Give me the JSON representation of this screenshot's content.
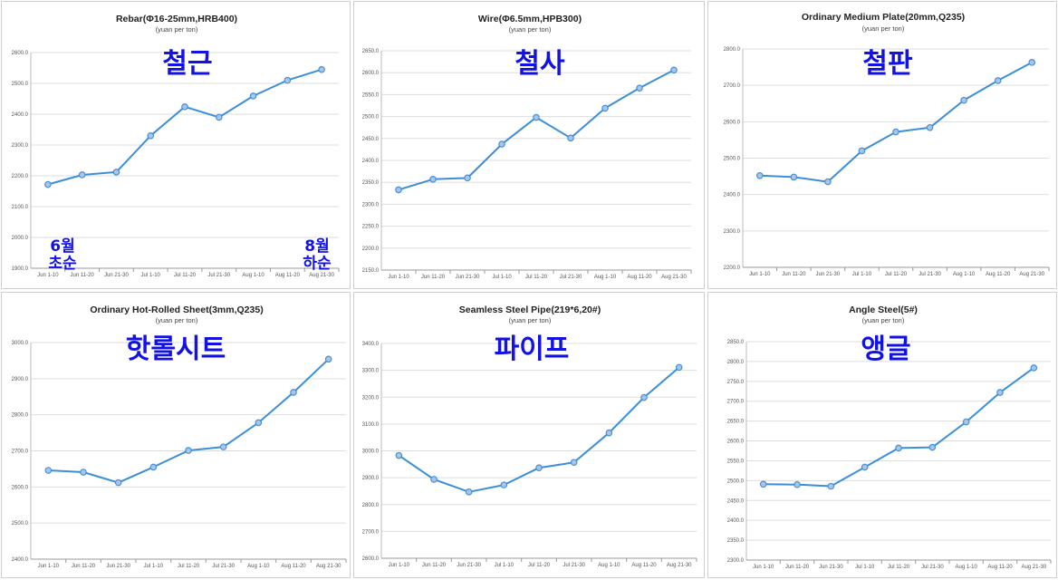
{
  "colors": {
    "line": "#3b8fd9",
    "marker_fill": "#a7c7ea",
    "marker_stroke": "#4a8fd6",
    "grid": "#dddddd",
    "korean_label": "#1212e6"
  },
  "chart_data": [
    {
      "type": "line",
      "title": "Rebar(Φ16-25mm,HRB400)",
      "subtitle": "(yuan per ton)",
      "korean_label": "철근",
      "corner_labels": {
        "left_top": "6월",
        "left_bottom": "초순",
        "right_top": "8월",
        "right_bottom": "하순"
      },
      "categories": [
        "Jun 1-10",
        "Jun 11-20",
        "Jun 21-30",
        "Jul 1-10",
        "Jul 11-20",
        "Jul 21-30",
        "Aug 1-10",
        "Aug 11-20",
        "Aug 21-30"
      ],
      "values": [
        2172,
        2203,
        2212,
        2330,
        2424,
        2390,
        2459,
        2510,
        2545
      ],
      "ylim": [
        1900,
        2600
      ],
      "yticks": [
        1900,
        2000,
        2100,
        2200,
        2300,
        2400,
        2500,
        2600
      ],
      "ytick_labels": [
        "1900.0",
        "2000.0",
        "2100.0",
        "2200.0",
        "2300.0",
        "2400.0",
        "2500.0",
        "2600.0"
      ],
      "grid": true
    },
    {
      "type": "line",
      "title": "Wire(Φ6.5mm,HPB300)",
      "subtitle": "(yuan per ton)",
      "korean_label": "철사",
      "categories": [
        "Jun 1-10",
        "Jun 11-20",
        "Jun 21-30",
        "Jul 1-10",
        "Jul 11-20",
        "Jul 21-30",
        "Aug 1-10",
        "Aug 11-20",
        "Aug 21-30"
      ],
      "values": [
        2333,
        2357,
        2360,
        2437,
        2498,
        2451,
        2519,
        2565,
        2606
      ],
      "ylim": [
        2150,
        2650
      ],
      "yticks": [
        2150,
        2200,
        2250,
        2300,
        2350,
        2400,
        2450,
        2500,
        2550,
        2600,
        2650
      ],
      "ytick_labels": [
        "2150.0",
        "2200.0",
        "2250.0",
        "2300.0",
        "2350.0",
        "2400.0",
        "2450.0",
        "2500.0",
        "2550.0",
        "2600.0",
        "2650.0"
      ],
      "grid": true
    },
    {
      "type": "line",
      "title": "Ordinary Medium Plate(20mm,Q235)",
      "subtitle": "(yuan per ton)",
      "korean_label": "철판",
      "categories": [
        "Jun 1-10",
        "Jun 11-20",
        "Jun 21-30",
        "Jul 1-10",
        "Jul 11-20",
        "Jul 21-30",
        "Aug 1-10",
        "Aug 11-20",
        "Aug 21-30"
      ],
      "values": [
        2452,
        2448,
        2435,
        2520,
        2572,
        2584,
        2659,
        2713,
        2763
      ],
      "ylim": [
        2200,
        2800
      ],
      "yticks": [
        2200,
        2300,
        2400,
        2500,
        2600,
        2700,
        2800
      ],
      "ytick_labels": [
        "2200.0",
        "2300.0",
        "2400.0",
        "2500.0",
        "2600.0",
        "2700.0",
        "2800.0"
      ],
      "grid": true
    },
    {
      "type": "line",
      "title": "Ordinary Hot-Rolled Sheet(3mm,Q235)",
      "subtitle": "(yuan per ton)",
      "korean_label": "핫롤시트",
      "categories": [
        "Jun 1-10",
        "Jun 11-20",
        "Jun 21-30",
        "Jul 1-10",
        "Jul 11-20",
        "Jul 21-30",
        "Aug 1-10",
        "Aug 11-20",
        "Aug 21-30"
      ],
      "values": [
        2646,
        2641,
        2612,
        2655,
        2701,
        2711,
        2778,
        2862,
        2954
      ],
      "ylim": [
        2400,
        3000
      ],
      "yticks": [
        2400,
        2500,
        2600,
        2700,
        2800,
        2900,
        3000
      ],
      "ytick_labels": [
        "2400.0",
        "2500.0",
        "2600.0",
        "2700.0",
        "2800.0",
        "2900.0",
        "3000.0"
      ],
      "grid": true
    },
    {
      "type": "line",
      "title": "Seamless Steel Pipe(219*6,20#)",
      "subtitle": "(yuan per ton)",
      "korean_label": "파이프",
      "categories": [
        "Jun 1-10",
        "Jun 11-20",
        "Jun 21-30",
        "Jul 1-10",
        "Jul 11-20",
        "Jul 21-30",
        "Aug 1-10",
        "Aug 11-20",
        "Aug 21-30"
      ],
      "values": [
        2983,
        2894,
        2847,
        2873,
        2937,
        2957,
        3067,
        3199,
        3311
      ],
      "ylim": [
        2600,
        3400
      ],
      "yticks": [
        2600,
        2700,
        2800,
        2900,
        3000,
        3100,
        3200,
        3300,
        3400
      ],
      "ytick_labels": [
        "2600.0",
        "2700.0",
        "2800.0",
        "2900.0",
        "3000.0",
        "3100.0",
        "3200.0",
        "3300.0",
        "3400.0"
      ],
      "grid": true
    },
    {
      "type": "line",
      "title": "Angle Steel(5#)",
      "subtitle": "(yuan per ton)",
      "korean_label": "앵글",
      "categories": [
        "Jun 1-10",
        "Jun 11-20",
        "Jun 21-30",
        "Jul 1-10",
        "Jul 11-20",
        "Jul 21-30",
        "Aug 1-10",
        "Aug 11-20",
        "Aug 21-30"
      ],
      "values": [
        2491,
        2490,
        2486,
        2534,
        2582,
        2584,
        2648,
        2722,
        2784
      ],
      "ylim": [
        2300,
        2850
      ],
      "yticks": [
        2300,
        2350,
        2400,
        2450,
        2500,
        2550,
        2600,
        2650,
        2700,
        2750,
        2800,
        2850
      ],
      "ytick_labels": [
        "2300.0",
        "2350.0",
        "2400.0",
        "2450.0",
        "2500.0",
        "2550.0",
        "2600.0",
        "2650.0",
        "2700.0",
        "2750.0",
        "2800.0",
        "2850.0"
      ],
      "grid": true
    }
  ]
}
